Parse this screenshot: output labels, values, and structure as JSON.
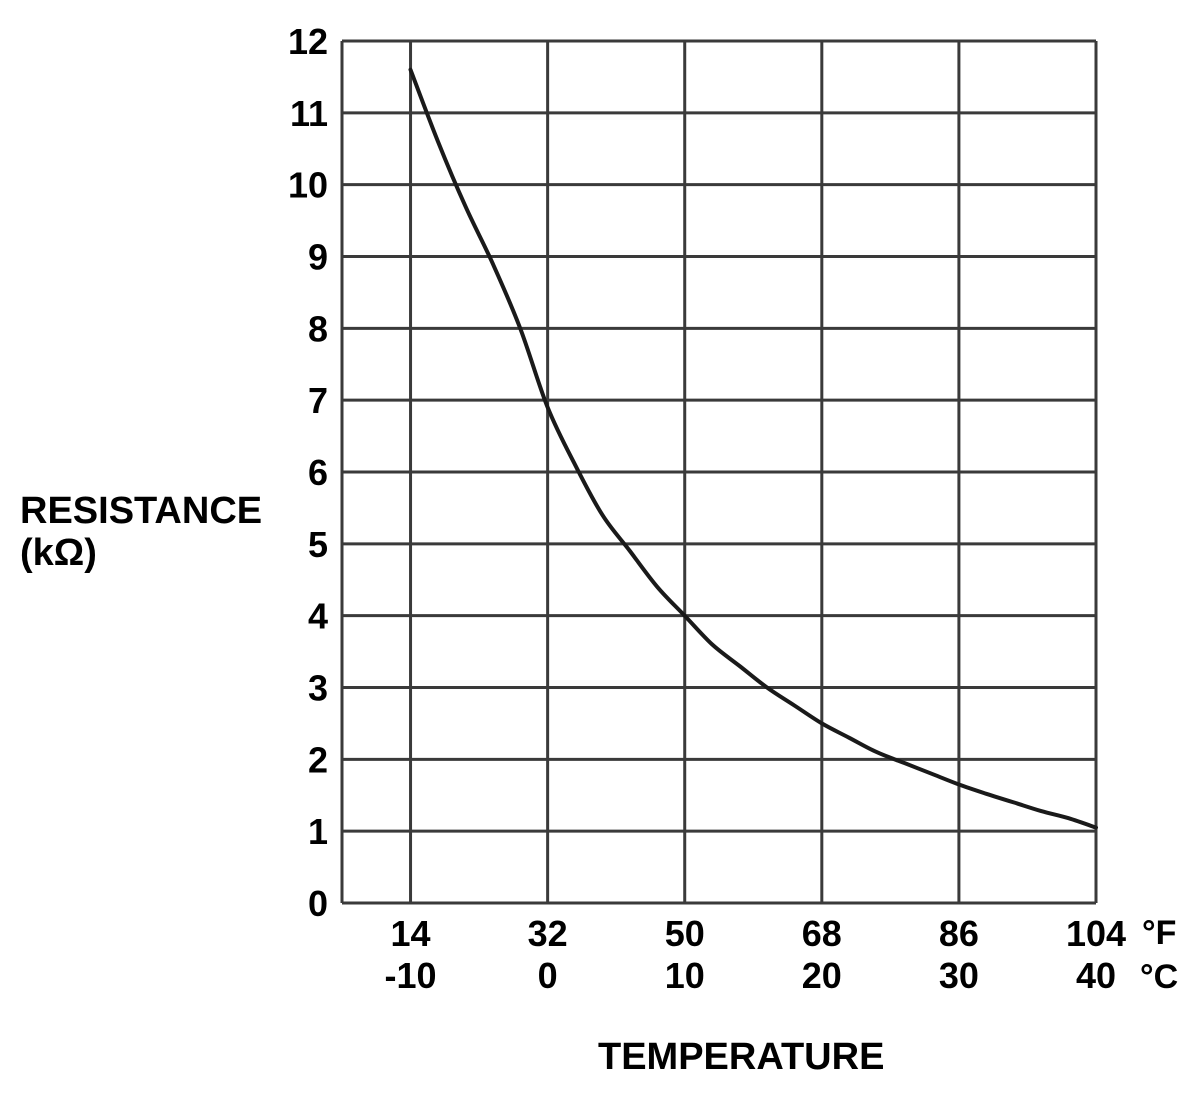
{
  "chart_data": {
    "type": "line",
    "title": "",
    "xlabel": "TEMPERATURE",
    "ylabel_line1": "RESISTANCE",
    "ylabel_line2": "(kΩ)",
    "x_unit_f": "°F",
    "x_unit_c": "°C",
    "x_ticks_f": [
      14,
      32,
      50,
      68,
      86,
      104
    ],
    "x_ticks_c": [
      -10,
      0,
      10,
      20,
      30,
      40
    ],
    "xlim_c": [
      -15,
      40
    ],
    "y_ticks": [
      0,
      1,
      2,
      3,
      4,
      5,
      6,
      7,
      8,
      9,
      10,
      11,
      12
    ],
    "ylim": [
      0,
      12
    ],
    "grid": true,
    "series": [
      {
        "x_c": [
          -10,
          -8,
          -6,
          -4,
          -2,
          0,
          2,
          4,
          6,
          8,
          10,
          12,
          14,
          16,
          18,
          20,
          22,
          24,
          26,
          28,
          30,
          32,
          34,
          36,
          38,
          40
        ],
        "values": [
          11.6,
          10.6,
          9.7,
          8.9,
          8.0,
          6.9,
          6.1,
          5.4,
          4.9,
          4.4,
          4.0,
          3.6,
          3.3,
          3.0,
          2.75,
          2.5,
          2.3,
          2.1,
          1.95,
          1.8,
          1.65,
          1.52,
          1.4,
          1.28,
          1.18,
          1.05
        ]
      }
    ],
    "line_color": "#1a1a1a",
    "grid_color": "#3a3a3a"
  }
}
